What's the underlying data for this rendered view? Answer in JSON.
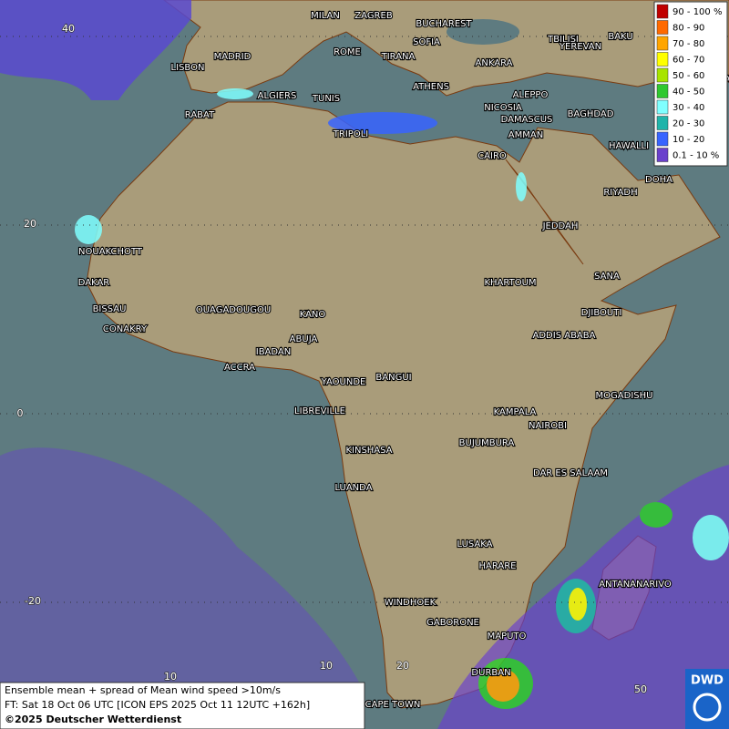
{
  "legend": [
    {
      "label": "90 - 100 %",
      "color": "#c00000"
    },
    {
      "label": "80 - 90",
      "color": "#ff6a00"
    },
    {
      "label": "70 - 80",
      "color": "#ffa500"
    },
    {
      "label": "60 - 70",
      "color": "#ffff00"
    },
    {
      "label": "50 - 60",
      "color": "#a8e400"
    },
    {
      "label": "40 - 50",
      "color": "#30c830"
    },
    {
      "label": "30 - 40",
      "color": "#80ffff"
    },
    {
      "label": "20 - 30",
      "color": "#20b4aa"
    },
    {
      "label": "10 - 20",
      "color": "#3864ff"
    },
    {
      "label": "0.1 - 10 %",
      "color": "#6a40cc"
    }
  ],
  "cities": [
    "MILAN",
    "ZAGREB",
    "BUCHAREST",
    "SOFIA",
    "ROME",
    "TIRANA",
    "ANKARA",
    "TBILISI",
    "YEREVAN",
    "BAKU",
    "TEHRA",
    "LISBON",
    "MADRID",
    "ALGIERS",
    "TUNIS",
    "ATHENS",
    "ALEPPO",
    "NICOSIA",
    "BAGHDAD",
    "DAMASCUS",
    "AMMAN",
    "RABAT",
    "TRIPOLI",
    "HAWALLI",
    "CAIRO",
    "DOHA",
    "RIYADH",
    "JEDDAH",
    "NOUAKCHOTT",
    "SANA",
    "DAKAR",
    "KHARTOUM",
    "BISSAU",
    "DJIBOUTI",
    "OUAGADOUGOU",
    "KANO",
    "CONAKRY",
    "ADDIS ABABA",
    "ABUJA",
    "IBADAN",
    "ACCRA",
    "YAOUNDE",
    "BANGUI",
    "MOGADISHU",
    "LIBREVILLE",
    "KAMPALA",
    "NAIROBI",
    "KINSHASA",
    "BUJUMBURA",
    "DAR ES SALAAM",
    "LUANDA",
    "LUSAKA",
    "ANTANANARIVO",
    "HARARE",
    "WINDHOEK",
    "GABORONE",
    "MAPUTO",
    "DURBAN",
    "CAPE TOWN"
  ],
  "grid": {
    "lat_labels": [
      40,
      20,
      0,
      -20
    ],
    "lon_labels": [
      10,
      10,
      20,
      50
    ]
  },
  "footer": {
    "line1": "Ensemble mean + spread of Mean wind speed >10m/s",
    "line2": "FT: Sat 18 Oct 06 UTC [ICON EPS 2025 Oct 11 12UTC +162h]",
    "line3": "©2025 Deutscher Wetterdienst"
  },
  "logo": "DWD"
}
